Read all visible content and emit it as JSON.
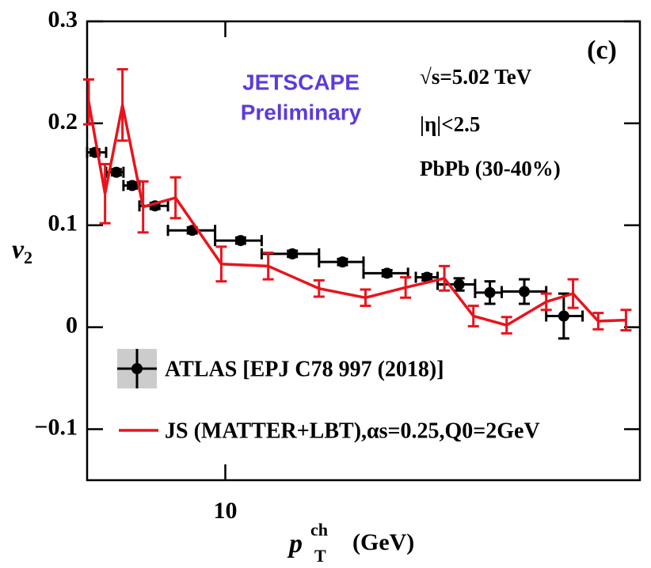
{
  "chart_data": {
    "type": "line",
    "annotations": {
      "panel": "(c)",
      "collab": "JETSCAPE",
      "status": "Preliminary",
      "energy": "√s=5.02 TeV",
      "eta": "|η|<2.5",
      "system": "PbPb (30-40%)"
    },
    "ylabel": {
      "main": "v",
      "sub": "2"
    },
    "xlabel": {
      "main": "p",
      "sup": "ch",
      "sub": "T",
      "unit": "(GeV)"
    },
    "xlim": [
      5,
      80
    ],
    "xticks": [
      10
    ],
    "xscale": "log",
    "ylim": [
      -0.15,
      0.3
    ],
    "yticks": [
      0.3,
      0.2,
      0.1,
      0,
      {
        "value": -0.1,
        "label": "−0.1"
      }
    ],
    "series": [
      {
        "name": "ATLAS [EPJ C78 997 (2018)]",
        "style": "points",
        "color": "#000000",
        "x": [
          5.2,
          5.79,
          6.27,
          7.03,
          8.47,
          10.8,
          14.0,
          18.0,
          22.5,
          27.5,
          32.3,
          37.7,
          44.8,
          54.6
        ],
        "values": [
          0.1715,
          0.152,
          0.139,
          0.119,
          0.095,
          0.085,
          0.072,
          0.064,
          0.053,
          0.049,
          0.042,
          0.034,
          0.035,
          0.011
        ],
        "yerr": [
          0.003,
          0.003,
          0.003,
          0.003,
          0.003,
          0.003,
          0.003,
          0.003,
          0.003,
          0.003,
          0.006,
          0.011,
          0.012,
          0.022
        ],
        "xlow": [
          5.0,
          5.5,
          6.0,
          6.5,
          7.5,
          9.5,
          12,
          16,
          20,
          26,
          29,
          35,
          40,
          50
        ],
        "xhigh": [
          5.5,
          6.0,
          6.5,
          7.5,
          9.5,
          12,
          16,
          20,
          25,
          29,
          35,
          40,
          50,
          60
        ]
      },
      {
        "name": "JS (MATTER+LBT),αs=0.25,Q0=2GeV",
        "style": "line",
        "color": "#e8141c",
        "x": [
          5.04,
          5.47,
          5.97,
          6.62,
          7.79,
          9.8,
          12.4,
          16.0,
          20.2,
          24.7,
          30.0,
          34.7,
          41.0,
          50.0,
          57.2,
          64.9,
          74.6
        ],
        "values": [
          0.221,
          0.131,
          0.218,
          0.118,
          0.127,
          0.062,
          0.06,
          0.038,
          0.029,
          0.039,
          0.048,
          0.011,
          0.002,
          0.025,
          0.033,
          0.006,
          0.007
        ],
        "yerr": [
          0.022,
          0.029,
          0.035,
          0.025,
          0.02,
          0.017,
          0.013,
          0.008,
          0.008,
          0.01,
          0.012,
          0.01,
          0.008,
          0.008,
          0.014,
          0.008,
          0.01
        ]
      }
    ]
  }
}
